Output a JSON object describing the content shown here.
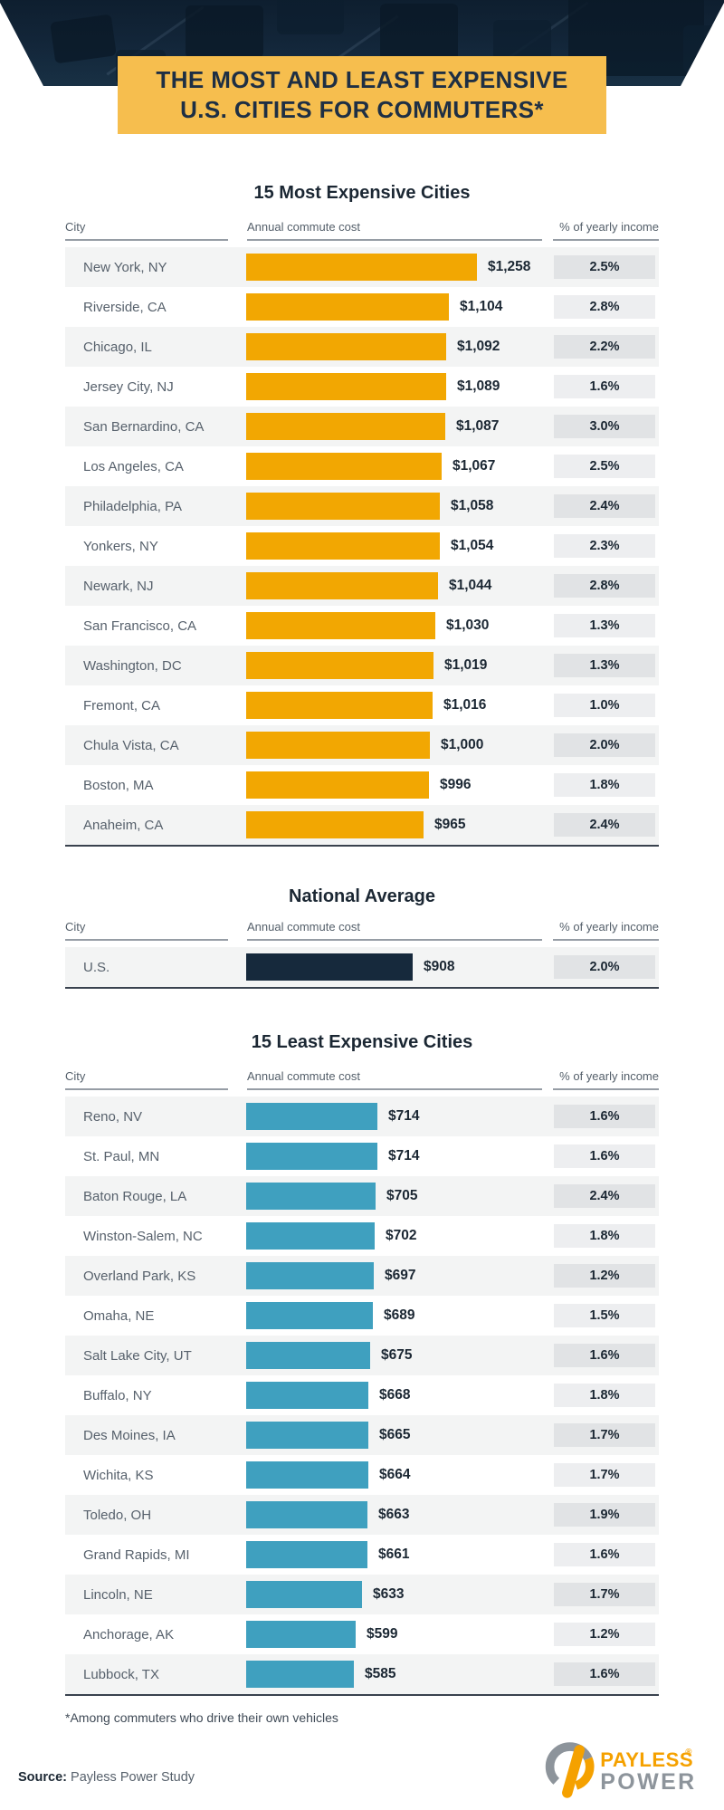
{
  "header": {
    "title_line1": "THE MOST AND LEAST EXPENSIVE",
    "title_line2": "U.S. CITIES FOR COMMUTERS*"
  },
  "columns": {
    "city": "City",
    "cost": "Annual commute cost",
    "income": "% of yearly income"
  },
  "colors": {
    "banner_yellow": "#F6BE4E",
    "orange_bar": "#F2A702",
    "navy_bar": "#16293C",
    "teal_bar": "#3FA0BF",
    "dark_text": "#1B2733"
  },
  "sections": [
    {
      "id": "most",
      "title": "15 Most Expensive Cities",
      "bar_color": "#F2A702",
      "rows": [
        {
          "city": "New York, NY",
          "cost_value": 1258,
          "cost": "$1,258",
          "income": "2.5%"
        },
        {
          "city": "Riverside, CA",
          "cost_value": 1104,
          "cost": "$1,104",
          "income": "2.8%"
        },
        {
          "city": "Chicago, IL",
          "cost_value": 1092,
          "cost": "$1,092",
          "income": "2.2%"
        },
        {
          "city": "Jersey City, NJ",
          "cost_value": 1089,
          "cost": "$1,089",
          "income": "1.6%"
        },
        {
          "city": "San Bernardino, CA",
          "cost_value": 1087,
          "cost": "$1,087",
          "income": "3.0%"
        },
        {
          "city": "Los Angeles, CA",
          "cost_value": 1067,
          "cost": "$1,067",
          "income": "2.5%"
        },
        {
          "city": "Philadelphia, PA",
          "cost_value": 1058,
          "cost": "$1,058",
          "income": "2.4%"
        },
        {
          "city": "Yonkers, NY",
          "cost_value": 1054,
          "cost": "$1,054",
          "income": "2.3%"
        },
        {
          "city": "Newark, NJ",
          "cost_value": 1044,
          "cost": "$1,044",
          "income": "2.8%"
        },
        {
          "city": "San Francisco, CA",
          "cost_value": 1030,
          "cost": "$1,030",
          "income": "1.3%"
        },
        {
          "city": "Washington, DC",
          "cost_value": 1019,
          "cost": "$1,019",
          "income": "1.3%"
        },
        {
          "city": "Fremont, CA",
          "cost_value": 1016,
          "cost": "$1,016",
          "income": "1.0%"
        },
        {
          "city": "Chula Vista, CA",
          "cost_value": 1000,
          "cost": "$1,000",
          "income": "2.0%"
        },
        {
          "city": "Boston, MA",
          "cost_value": 996,
          "cost": "$996",
          "income": "1.8%"
        },
        {
          "city": "Anaheim, CA",
          "cost_value": 965,
          "cost": "$965",
          "income": "2.4%"
        }
      ]
    },
    {
      "id": "national",
      "title": "National Average",
      "bar_color": "#16293C",
      "rows": [
        {
          "city": "U.S.",
          "cost_value": 908,
          "cost": "$908",
          "income": "2.0%"
        }
      ]
    },
    {
      "id": "least",
      "title": "15 Least Expensive Cities",
      "bar_color": "#3FA0BF",
      "rows": [
        {
          "city": "Reno, NV",
          "cost_value": 714,
          "cost": "$714",
          "income": "1.6%"
        },
        {
          "city": "St. Paul, MN",
          "cost_value": 714,
          "cost": "$714",
          "income": "1.6%"
        },
        {
          "city": "Baton Rouge, LA",
          "cost_value": 705,
          "cost": "$705",
          "income": "2.4%"
        },
        {
          "city": "Winston-Salem, NC",
          "cost_value": 702,
          "cost": "$702",
          "income": "1.8%"
        },
        {
          "city": "Overland Park, KS",
          "cost_value": 697,
          "cost": "$697",
          "income": "1.2%"
        },
        {
          "city": "Omaha, NE",
          "cost_value": 689,
          "cost": "$689",
          "income": "1.5%"
        },
        {
          "city": "Salt Lake City, UT",
          "cost_value": 675,
          "cost": "$675",
          "income": "1.6%"
        },
        {
          "city": "Buffalo, NY",
          "cost_value": 668,
          "cost": "$668",
          "income": "1.8%"
        },
        {
          "city": "Des Moines, IA",
          "cost_value": 665,
          "cost": "$665",
          "income": "1.7%"
        },
        {
          "city": "Wichita, KS",
          "cost_value": 664,
          "cost": "$664",
          "income": "1.7%"
        },
        {
          "city": "Toledo, OH",
          "cost_value": 663,
          "cost": "$663",
          "income": "1.9%"
        },
        {
          "city": "Grand Rapids, MI",
          "cost_value": 661,
          "cost": "$661",
          "income": "1.6%"
        },
        {
          "city": "Lincoln, NE",
          "cost_value": 633,
          "cost": "$633",
          "income": "1.7%"
        },
        {
          "city": "Anchorage, AK",
          "cost_value": 599,
          "cost": "$599",
          "income": "1.2%"
        },
        {
          "city": "Lubbock, TX",
          "cost_value": 585,
          "cost": "$585",
          "income": "1.6%"
        }
      ]
    }
  ],
  "footnote": "*Among commuters who drive their own vehicles",
  "footer": {
    "source_label": "Source:",
    "source_text": "Payless Power Study",
    "logo_word1": "PAYLESS",
    "logo_reg": "®",
    "logo_word2": "POWER"
  },
  "chart_data": [
    {
      "type": "bar",
      "orientation": "horizontal",
      "title": "15 Most Expensive Cities",
      "xlabel": "Annual commute cost",
      "ylabel": "City",
      "bar_color": "#F2A702",
      "xlim": [
        0,
        1258
      ],
      "grid": false,
      "categories": [
        "New York, NY",
        "Riverside, CA",
        "Chicago, IL",
        "Jersey City, NJ",
        "San Bernardino, CA",
        "Los Angeles, CA",
        "Philadelphia, PA",
        "Yonkers, NY",
        "Newark, NJ",
        "San Francisco, CA",
        "Washington, DC",
        "Fremont, CA",
        "Chula Vista, CA",
        "Boston, MA",
        "Anaheim, CA"
      ],
      "series": [
        {
          "name": "Annual commute cost ($)",
          "values": [
            1258,
            1104,
            1092,
            1089,
            1087,
            1067,
            1058,
            1054,
            1044,
            1030,
            1019,
            1016,
            1000,
            996,
            965
          ]
        },
        {
          "name": "% of yearly income",
          "values": [
            2.5,
            2.8,
            2.2,
            1.6,
            3.0,
            2.5,
            2.4,
            2.3,
            2.8,
            1.3,
            1.3,
            1.0,
            2.0,
            1.8,
            2.4
          ]
        }
      ]
    },
    {
      "type": "bar",
      "orientation": "horizontal",
      "title": "National Average",
      "xlabel": "Annual commute cost",
      "ylabel": "City",
      "bar_color": "#16293C",
      "xlim": [
        0,
        1258
      ],
      "grid": false,
      "categories": [
        "U.S."
      ],
      "series": [
        {
          "name": "Annual commute cost ($)",
          "values": [
            908
          ]
        },
        {
          "name": "% of yearly income",
          "values": [
            2.0
          ]
        }
      ]
    },
    {
      "type": "bar",
      "orientation": "horizontal",
      "title": "15 Least Expensive Cities",
      "xlabel": "Annual commute cost",
      "ylabel": "City",
      "bar_color": "#3FA0BF",
      "xlim": [
        0,
        1258
      ],
      "grid": false,
      "categories": [
        "Reno, NV",
        "St. Paul, MN",
        "Baton Rouge, LA",
        "Winston-Salem, NC",
        "Overland Park, KS",
        "Omaha, NE",
        "Salt Lake City, UT",
        "Buffalo, NY",
        "Des Moines, IA",
        "Wichita, KS",
        "Toledo, OH",
        "Grand Rapids, MI",
        "Lincoln, NE",
        "Anchorage, AK",
        "Lubbock, TX"
      ],
      "series": [
        {
          "name": "Annual commute cost ($)",
          "values": [
            714,
            714,
            705,
            702,
            697,
            689,
            675,
            668,
            665,
            664,
            663,
            661,
            633,
            599,
            585
          ]
        },
        {
          "name": "% of yearly income",
          "values": [
            1.6,
            1.6,
            2.4,
            1.8,
            1.2,
            1.5,
            1.6,
            1.8,
            1.7,
            1.7,
            1.9,
            1.6,
            1.7,
            1.2,
            1.6
          ]
        }
      ]
    }
  ]
}
